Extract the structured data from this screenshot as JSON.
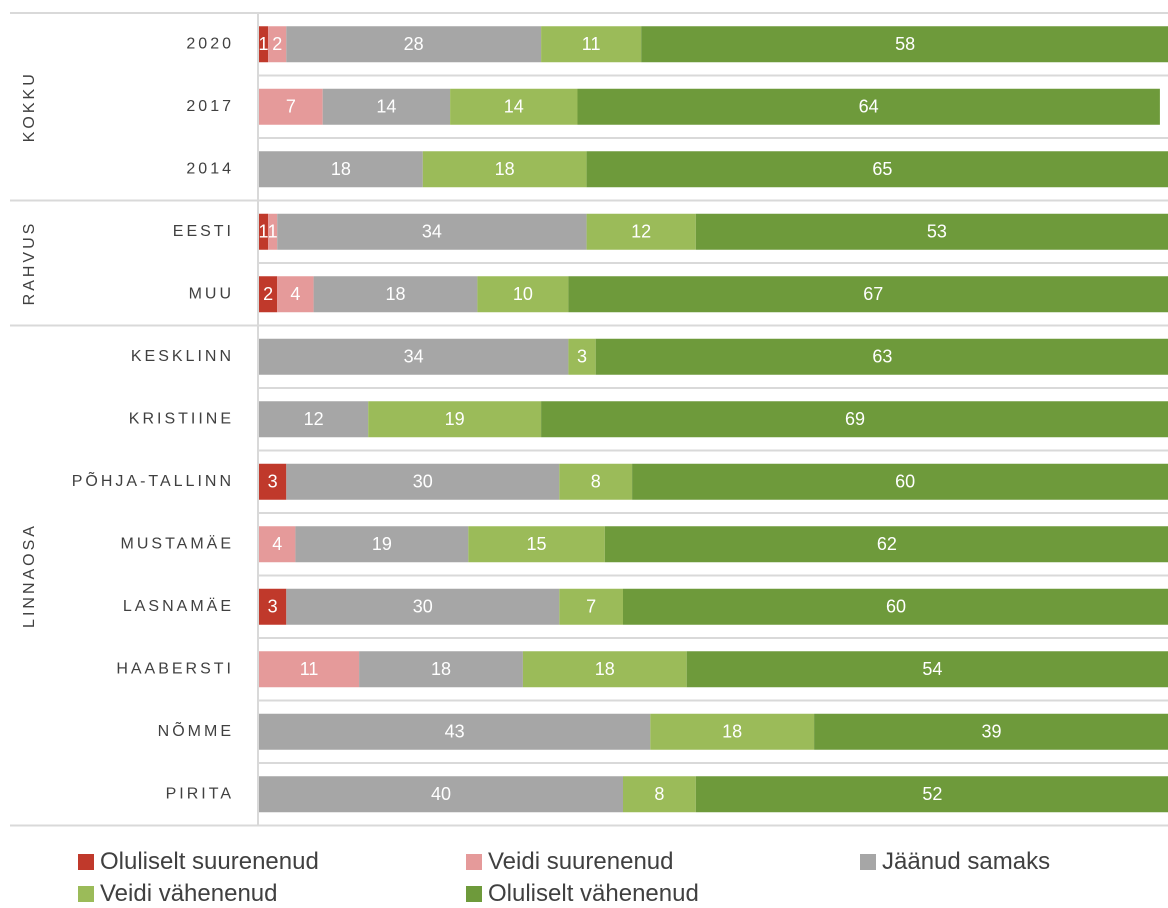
{
  "chart_data": {
    "type": "bar",
    "orientation": "horizontal",
    "stacked": true,
    "xlim": [
      0,
      100
    ],
    "grid": "horizontal",
    "legend_position": "bottom",
    "groups": [
      {
        "label": "KOKKU",
        "rows": [
          "2020",
          "2017",
          "2014"
        ]
      },
      {
        "label": "RAHVUS",
        "rows": [
          "EESTI",
          "MUU"
        ]
      },
      {
        "label": "LINNAOSA",
        "rows": [
          "KESKLINN",
          "KRISTIINE",
          "PÕHJA-TALLINN",
          "MUSTAMÄE",
          "LASNAMÄE",
          "HAABERSTI",
          "NÕMME",
          "PIRITA"
        ]
      }
    ],
    "categories": [
      "2020",
      "2017",
      "2014",
      "EESTI",
      "MUU",
      "KESKLINN",
      "KRISTIINE",
      "PÕHJA-TALLINN",
      "MUSTAMÄE",
      "LASNAMÄE",
      "HAABERSTI",
      "NÕMME",
      "PIRITA"
    ],
    "series": [
      {
        "name": "Oluliselt suurenenud",
        "color": "#C0392B",
        "values": [
          1,
          0,
          0,
          1,
          2,
          0,
          0,
          3,
          0,
          3,
          0,
          0,
          0
        ]
      },
      {
        "name": "Veidi suurenenud",
        "color": "#E59A9A",
        "values": [
          2,
          7,
          0,
          1,
          4,
          0,
          0,
          0,
          4,
          0,
          11,
          0,
          0
        ]
      },
      {
        "name": "Jäänud samaks",
        "color": "#A6A6A6",
        "values": [
          28,
          14,
          18,
          34,
          18,
          34,
          12,
          30,
          19,
          30,
          18,
          43,
          40
        ]
      },
      {
        "name": "Veidi vähenenud",
        "color": "#9BBB59",
        "values": [
          11,
          14,
          18,
          12,
          10,
          3,
          19,
          8,
          15,
          7,
          18,
          18,
          8
        ]
      },
      {
        "name": "Oluliselt vähenenud",
        "color": "#6E9A3B",
        "values": [
          58,
          64,
          65,
          53,
          67,
          63,
          69,
          60,
          62,
          60,
          54,
          39,
          52
        ]
      }
    ]
  }
}
